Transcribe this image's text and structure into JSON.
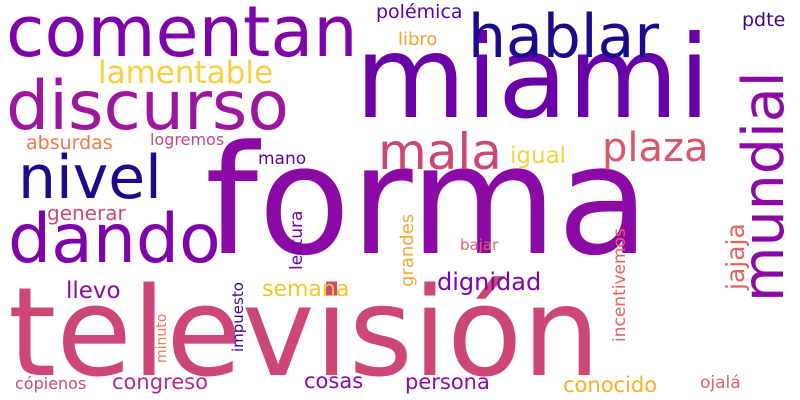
{
  "words": {
    "forma": {
      "text": "forma",
      "color": "#8b0aa5"
    },
    "television": {
      "text": "televisión",
      "color": "#cc4778"
    },
    "miami": {
      "text": "miami",
      "color": "#6a00a8"
    },
    "comentan": {
      "text": "comentan",
      "color": "#7e03a8"
    },
    "discurso": {
      "text": "discurso",
      "color": "#9c179e"
    },
    "dando": {
      "text": "dando",
      "color": "#7e03a8"
    },
    "hablar": {
      "text": "hablar",
      "color": "#1a0a8c"
    },
    "mundial": {
      "text": "mundial",
      "color": "#8b0aa5"
    },
    "nivel": {
      "text": "nivel",
      "color": "#1a0a8c"
    },
    "mala": {
      "text": "mala",
      "color": "#cc4778"
    },
    "plaza": {
      "text": "plaza",
      "color": "#d8576b"
    },
    "lamentable": {
      "text": "lamentable",
      "color": "#f9d03f"
    },
    "polemica": {
      "text": "polémica",
      "color": "#5c01a6"
    },
    "libro": {
      "text": "libro",
      "color": "#f0a535"
    },
    "pdte": {
      "text": "pdte",
      "color": "#3a049a"
    },
    "absurdas": {
      "text": "absurdas",
      "color": "#ed7953"
    },
    "logremos": {
      "text": "logremos",
      "color": "#cc4778"
    },
    "mano": {
      "text": "mano",
      "color": "#5c01a6"
    },
    "igual": {
      "text": "igual",
      "color": "#f9d03f"
    },
    "generar": {
      "text": "generar",
      "color": "#cc4778"
    },
    "grandes": {
      "text": "grandes",
      "color": "#fca636"
    },
    "jajaja": {
      "text": "jajaja",
      "color": "#e16462"
    },
    "dignidad": {
      "text": "dignidad",
      "color": "#7e03a8"
    },
    "lectura": {
      "text": "lectura",
      "color": "#6a00a8"
    },
    "incentivemos": {
      "text": "incentivemos",
      "color": "#e16462"
    },
    "llevo": {
      "text": "llevo",
      "color": "#8b0aa5"
    },
    "semana": {
      "text": "semana",
      "color": "#f0c82a"
    },
    "bajar": {
      "text": "bajar",
      "color": "#e16462"
    },
    "impuesto": {
      "text": "impuesto",
      "color": "#3a049a"
    },
    "minuto": {
      "text": "minuto",
      "color": "#ed7953"
    },
    "congreso": {
      "text": "congreso",
      "color": "#b12a90"
    },
    "cosas": {
      "text": "cosas",
      "color": "#8b0aa5"
    },
    "persona": {
      "text": "persona",
      "color": "#8b0aa5"
    },
    "conocido": {
      "text": "conocido",
      "color": "#f9b121"
    },
    "ojala": {
      "text": "ojalá",
      "color": "#e16462"
    },
    "copienos": {
      "text": "cópienos",
      "color": "#cc4778"
    }
  }
}
